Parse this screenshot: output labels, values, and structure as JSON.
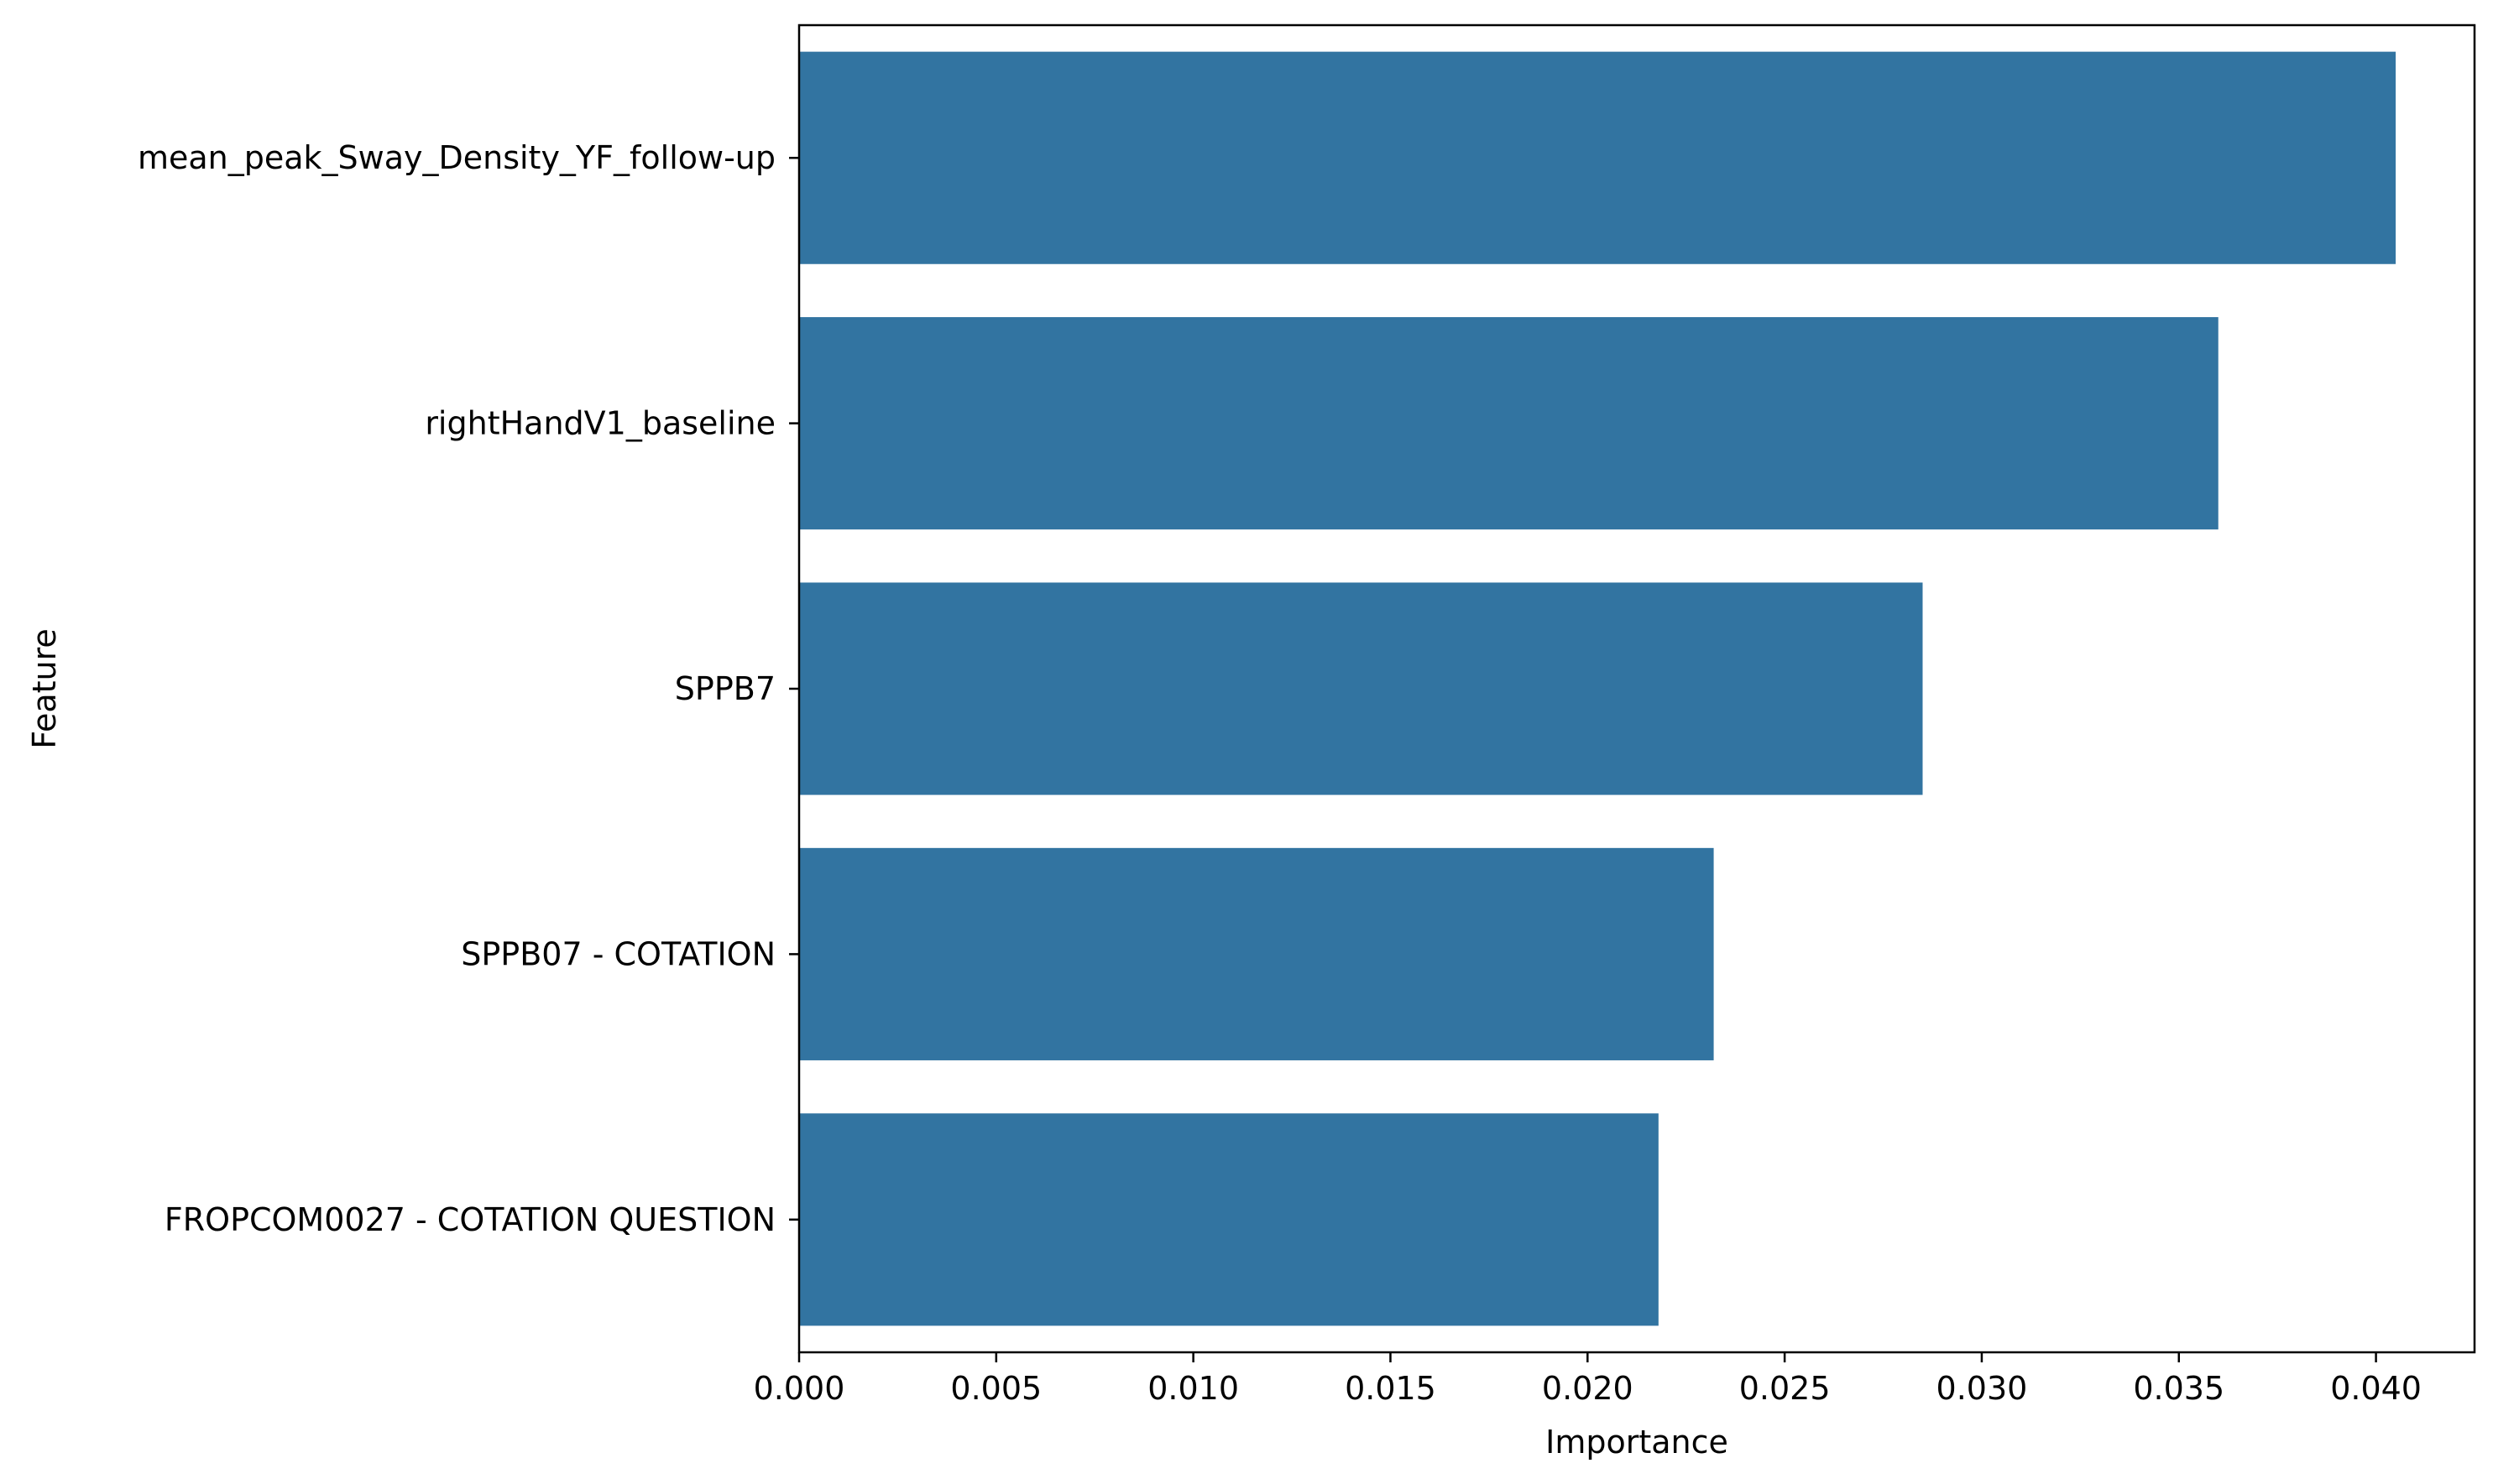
{
  "chart_data": {
    "type": "bar",
    "orientation": "horizontal",
    "title": "",
    "xlabel": "Importance",
    "ylabel": "Feature",
    "categories": [
      "mean_peak_Sway_Density_YF_follow-up",
      "rightHandV1_baseline",
      "SPPB7",
      "SPPB07 - COTATION",
      "FROPCOM0027 - COTATION QUESTION"
    ],
    "values": [
      0.0405,
      0.036,
      0.0285,
      0.0232,
      0.0218
    ],
    "xlim": [
      0.0,
      0.0425
    ],
    "xticks": [
      0.0,
      0.005,
      0.01,
      0.015,
      0.02,
      0.025,
      0.03,
      0.035,
      0.04
    ],
    "xtick_labels": [
      "0.000",
      "0.005",
      "0.010",
      "0.015",
      "0.020",
      "0.025",
      "0.030",
      "0.035",
      "0.040"
    ],
    "grid": false,
    "bar_color": "#3274a1",
    "legend": "none"
  }
}
